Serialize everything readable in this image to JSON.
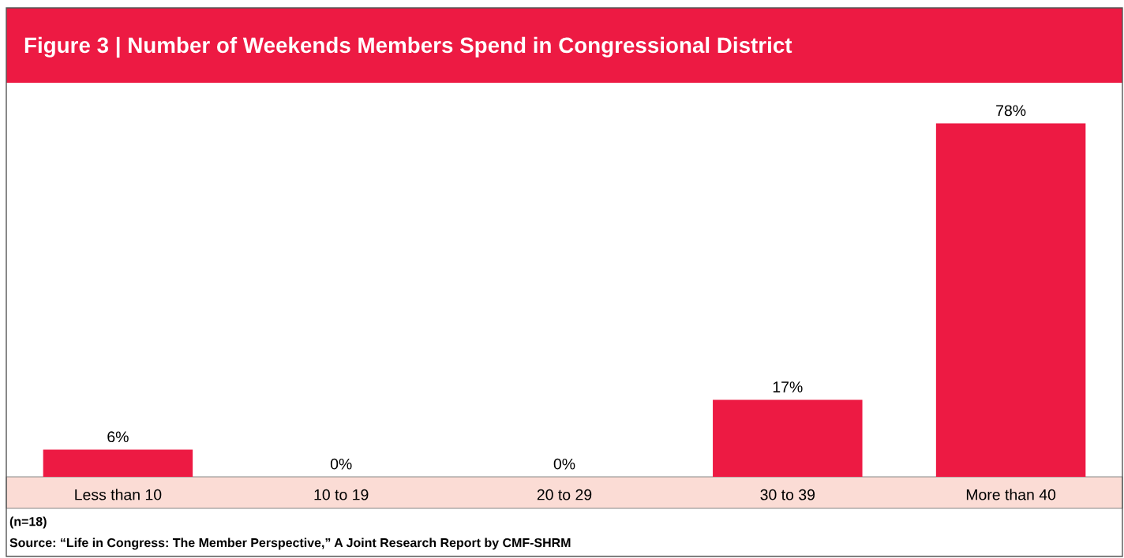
{
  "chart_data": {
    "type": "bar",
    "title": "Figure 3 | Number of Weekends Members Spend in Congressional District",
    "categories": [
      "Less than 10",
      "10 to 19",
      "20 to 29",
      "30 to 39",
      "More than 40"
    ],
    "values": [
      6,
      0,
      0,
      17,
      78
    ],
    "value_labels": [
      "6%",
      "0%",
      "0%",
      "17%",
      "78%"
    ],
    "color": "#ed1a43",
    "annotations": [
      "(n=18)",
      "Source: “Life in Congress: The Member Perspective,” A Joint Research Report by CMF-SHRM"
    ]
  }
}
